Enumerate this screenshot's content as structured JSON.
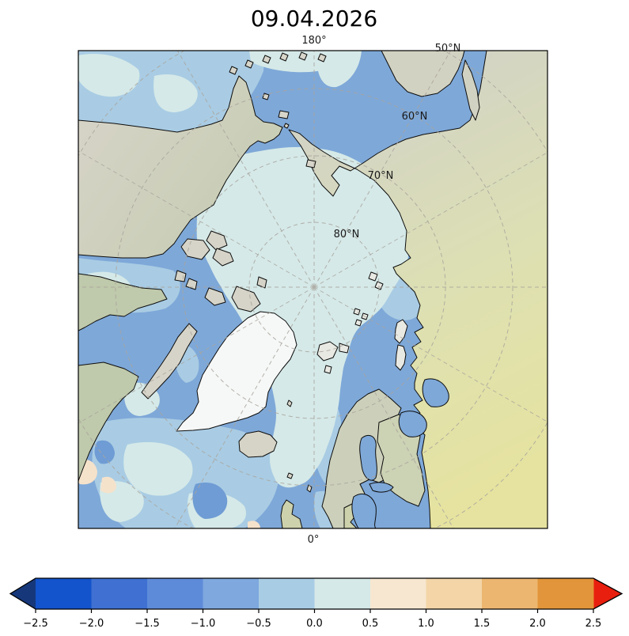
{
  "title": "09.04.2026",
  "map": {
    "projection": "north_polar_stereographic",
    "top_meridian_label": "180°",
    "bottom_meridian_label": "0°",
    "latitude_labels": [
      "50°N",
      "60°N",
      "70°N",
      "80°N"
    ]
  },
  "colorbar": {
    "tick_labels": [
      "−2.5",
      "−2.0",
      "−1.5",
      "−1.0",
      "−0.5",
      "0.0",
      "0.5",
      "1.0",
      "1.5",
      "2.0",
      "2.5"
    ],
    "tick_values": [
      -2.5,
      -2.0,
      -1.5,
      -1.0,
      -0.5,
      0.0,
      0.5,
      1.0,
      1.5,
      2.0,
      2.5
    ],
    "segment_colors": [
      "#1353cb",
      "#3f70d2",
      "#5e8bd9",
      "#7ea8de",
      "#a9cce5",
      "#d5e9e8",
      "#f7e7d1",
      "#f3d5a7",
      "#ecb670",
      "#e2953a"
    ],
    "under_arrow_color": "#16387b",
    "over_arrow_color": "#e81f0e",
    "outline_color": "#000000"
  },
  "palette": {
    "ocean_medium": "#7ea8d8",
    "ocean_light": "#a9cce4",
    "ocean_pale": "#d5e9e8",
    "ocean_darker": "#6f9cd4",
    "ocean_cream": "#f5e2cb",
    "land_green": "#bfc9ab",
    "land_tan": "#d6d4c8",
    "land_yellow": "#e6e3a0",
    "greenland_ice": "#f6f8f7",
    "coastline": "#0c0c0c",
    "graticule": "#a9a59d"
  },
  "chart_data": {
    "type": "heatmap",
    "title": "09.04.2026",
    "description": "North polar stereographic map of Arctic anomaly field (blue negative over ocean, pale near-zero over central Arctic ice) with land shown in natural-earth tan/green tones",
    "colorbar_range": [
      -2.5,
      2.5
    ],
    "colorbar_step": 0.5,
    "colorbar_extended_below": true,
    "colorbar_extended_above": true,
    "graticule_latitudes_deg": [
      50,
      60,
      70,
      80
    ],
    "graticule_meridian_step_deg": 30,
    "meridian_at_top": "180°",
    "meridian_at_bottom": "0°"
  }
}
